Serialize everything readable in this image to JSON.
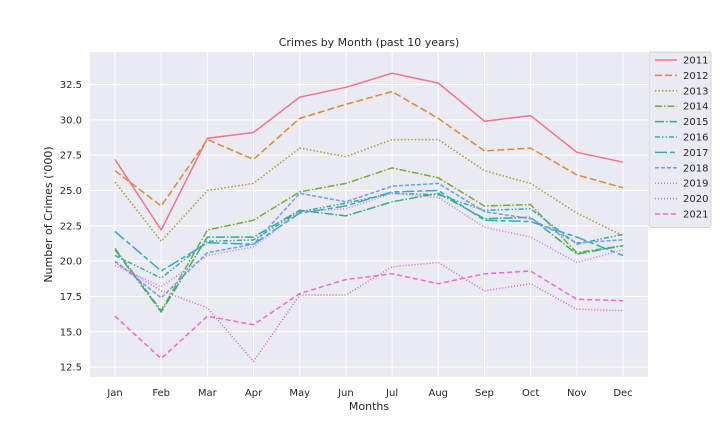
{
  "chart_data": {
    "type": "line",
    "title": "Crimes by Month (past 10 years)",
    "xlabel": "Months",
    "ylabel": "Number of Crimes ('000)",
    "categories": [
      "Jan",
      "Feb",
      "Mar",
      "Apr",
      "May",
      "Jun",
      "Jul",
      "Aug",
      "Sep",
      "Oct",
      "Nov",
      "Dec"
    ],
    "ylim": [
      11.8,
      34.8
    ],
    "yticks": [
      12.5,
      15.0,
      17.5,
      20.0,
      22.5,
      25.0,
      27.5,
      30.0,
      32.5
    ],
    "ytick_labels": [
      "12.5",
      "15.0",
      "17.5",
      "20.0",
      "22.5",
      "25.0",
      "27.5",
      "30.0",
      "32.5"
    ],
    "grid": true,
    "legend_position": "outside-top-right",
    "series": [
      {
        "name": "2011",
        "color": "#f77189",
        "dash": "",
        "values": [
          27.2,
          22.2,
          28.7,
          29.1,
          31.6,
          32.3,
          33.3,
          32.6,
          29.9,
          30.3,
          27.7,
          27.0
        ]
      },
      {
        "name": "2012",
        "color": "#dc8932",
        "dash": "7 3",
        "values": [
          26.4,
          23.9,
          28.6,
          27.2,
          30.1,
          31.1,
          32.0,
          30.1,
          27.8,
          28.0,
          26.1,
          25.2
        ]
      },
      {
        "name": "2013",
        "color": "#ae9d31",
        "dash": "1.5 2",
        "values": [
          25.6,
          21.4,
          25.0,
          25.5,
          28.0,
          27.4,
          28.6,
          28.6,
          26.4,
          25.5,
          23.4,
          21.8
        ]
      },
      {
        "name": "2014",
        "color": "#77ab31",
        "dash": "7 2 1.5 2",
        "values": [
          20.9,
          16.5,
          22.2,
          22.9,
          24.9,
          25.5,
          26.6,
          25.9,
          23.9,
          24.0,
          20.6,
          21.1
        ]
      },
      {
        "name": "2015",
        "color": "#33b07a",
        "dash": "9 2 1.5 2",
        "values": [
          20.8,
          16.4,
          21.7,
          21.7,
          23.6,
          23.2,
          24.2,
          24.8,
          23.0,
          23.1,
          20.5,
          21.1
        ]
      },
      {
        "name": "2016",
        "color": "#36ada4",
        "dash": "5 2 1.5 2 1.5 2",
        "values": [
          20.4,
          18.8,
          21.4,
          21.5,
          23.5,
          24.1,
          24.8,
          24.7,
          23.6,
          23.7,
          21.2,
          21.9
        ]
      },
      {
        "name": "2017",
        "color": "#38a9c5",
        "dash": "12 3 5 3",
        "values": [
          22.1,
          19.3,
          21.3,
          21.2,
          23.4,
          23.9,
          24.9,
          25.0,
          22.9,
          22.8,
          21.7,
          20.4
        ]
      },
      {
        "name": "2018",
        "color": "#6e9bf4",
        "dash": "4 2",
        "values": [
          20.0,
          17.4,
          20.6,
          21.2,
          24.8,
          24.2,
          25.3,
          25.5,
          23.5,
          23.0,
          21.3,
          21.5
        ]
      },
      {
        "name": "2019",
        "color": "#cc7af4",
        "dash": "1 2",
        "values": [
          19.7,
          18.2,
          20.4,
          21.0,
          23.5,
          23.7,
          24.8,
          24.5,
          22.4,
          21.7,
          19.9,
          20.8
        ]
      },
      {
        "name": "2020",
        "color": "#dd5dd6",
        "dash": "1 2",
        "values": [
          19.9,
          17.9,
          16.7,
          12.9,
          17.6,
          17.6,
          19.6,
          19.9,
          17.9,
          18.4,
          16.6,
          16.5
        ]
      },
      {
        "name": "2021",
        "color": "#f565cc",
        "dash": "5 3",
        "values": [
          16.1,
          13.1,
          16.1,
          15.5,
          17.7,
          18.7,
          19.1,
          18.4,
          19.1,
          19.3,
          17.3,
          17.2
        ]
      }
    ]
  }
}
